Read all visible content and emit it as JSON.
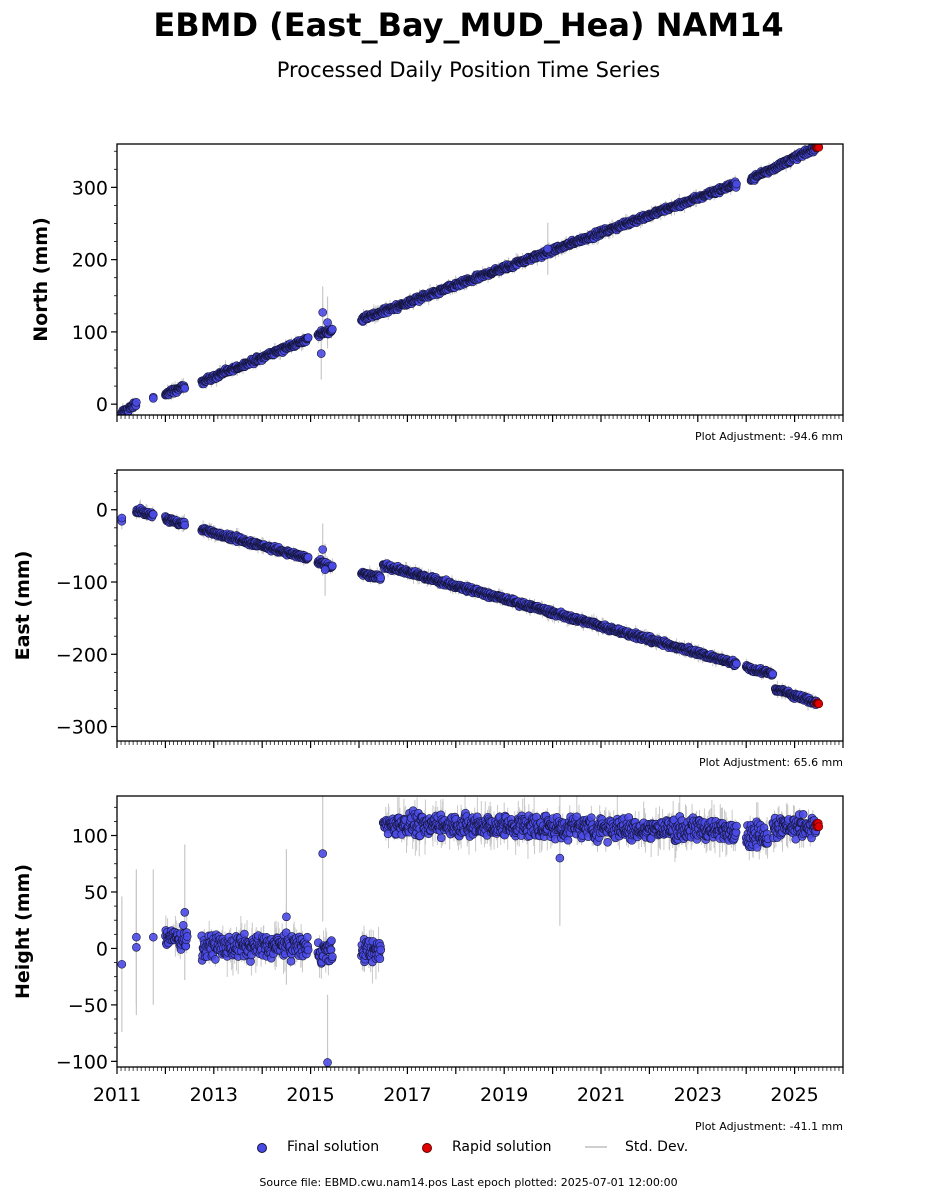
{
  "header": {
    "title": "EBMD (East_Bay_MUD_Hea) NAM14",
    "subtitle": "Processed Daily Position Time Series"
  },
  "legend": {
    "final": "Final solution",
    "rapid": "Rapid solution",
    "std": "Std. Dev."
  },
  "footer": "Source file: EBMD.cwu.nam14.pos  Last epoch plotted: 2025-07-01 12:00:00",
  "colors": {
    "final": "#4a4ae6",
    "rapid": "#e00000",
    "edge": "#141438",
    "std": "#c8c8c8"
  },
  "chart_data": [
    {
      "type": "scatter",
      "ylabel": "North (mm)",
      "adjustment": "Plot Adjustment: -94.6 mm",
      "xlim": [
        2011,
        2026
      ],
      "ylim": [
        -15,
        360
      ],
      "yticks": [
        0,
        100,
        200,
        300
      ],
      "xticks": [
        2011,
        2013,
        2015,
        2017,
        2019,
        2021,
        2023,
        2025
      ],
      "show_xtick_labels": false,
      "series": [
        {
          "name": "Final solution",
          "segments": [
            {
              "x": [
                2011.1,
                2011.4
              ],
              "y": [
                -12,
                0
              ]
            },
            {
              "x": [
                2011.75,
                2011.75
              ],
              "y": [
                8,
                8
              ]
            },
            {
              "x": [
                2012.0,
                2012.4
              ],
              "y": [
                14,
                24
              ]
            },
            {
              "x": [
                2012.75,
                2014.95
              ],
              "y": [
                31,
                90
              ]
            },
            {
              "x": [
                2015.15,
                2015.45
              ],
              "y": [
                96,
                103
              ]
            },
            {
              "x": [
                2016.05,
                2023.8
              ],
              "y": [
                117,
                305
              ]
            },
            {
              "x": [
                2024.1,
                2025.45
              ],
              "y": [
                312,
                355
              ]
            }
          ],
          "outliers": [
            [
              2015.25,
              127
            ],
            [
              2015.22,
              70
            ],
            [
              2015.35,
              113
            ],
            [
              2019.9,
              215
            ]
          ]
        },
        {
          "name": "Rapid solution",
          "segments": [
            {
              "x": [
                2025.45,
                2025.5
              ],
              "y": [
                355,
                357
              ]
            }
          ],
          "outliers": []
        }
      ]
    },
    {
      "type": "scatter",
      "ylabel": "East (mm)",
      "adjustment": "Plot Adjustment: 65.6 mm",
      "xlim": [
        2011,
        2026
      ],
      "ylim": [
        -320,
        55
      ],
      "yticks": [
        0,
        -100,
        -200,
        -300
      ],
      "xticks": [
        2011,
        2013,
        2015,
        2017,
        2019,
        2021,
        2023,
        2025
      ],
      "show_xtick_labels": false,
      "series": [
        {
          "name": "Final solution",
          "segments": [
            {
              "x": [
                2011.1,
                2011.1
              ],
              "y": [
                -12,
                -12
              ]
            },
            {
              "x": [
                2011.4,
                2011.75
              ],
              "y": [
                0,
                -8
              ]
            },
            {
              "x": [
                2012.0,
                2012.4
              ],
              "y": [
                -13,
                -20
              ]
            },
            {
              "x": [
                2012.75,
                2014.95
              ],
              "y": [
                -27,
                -67
              ]
            },
            {
              "x": [
                2015.15,
                2015.45
              ],
              "y": [
                -72,
                -80
              ]
            },
            {
              "x": [
                2016.05,
                2016.45
              ],
              "y": [
                -88,
                -95
              ]
            },
            {
              "x": [
                2016.5,
                2023.8
              ],
              "y": [
                -77,
                -213
              ]
            },
            {
              "x": [
                2024.0,
                2024.55
              ],
              "y": [
                -218,
                -227
              ]
            },
            {
              "x": [
                2024.6,
                2025.45
              ],
              "y": [
                -248,
                -267
              ]
            }
          ],
          "outliers": [
            [
              2015.25,
              -55
            ],
            [
              2015.3,
              -83
            ]
          ]
        },
        {
          "name": "Rapid solution",
          "segments": [
            {
              "x": [
                2025.45,
                2025.5
              ],
              "y": [
                -267,
                -268
              ]
            }
          ],
          "outliers": []
        }
      ]
    },
    {
      "type": "scatter",
      "ylabel": "Height (mm)",
      "adjustment": "Plot Adjustment: -41.1 mm",
      "xlim": [
        2011,
        2026
      ],
      "ylim": [
        -105,
        135
      ],
      "yticks": [
        -100,
        -50,
        0,
        50,
        100
      ],
      "xticks": [
        2011,
        2013,
        2015,
        2017,
        2019,
        2021,
        2023,
        2025
      ],
      "show_xtick_labels": true,
      "series": [
        {
          "name": "Final solution",
          "segments": [
            {
              "x": [
                2012.0,
                2012.45
              ],
              "y": [
                10,
                10
              ]
            },
            {
              "x": [
                2012.75,
                2014.95
              ],
              "y": [
                2,
                2
              ]
            },
            {
              "x": [
                2015.15,
                2015.45
              ],
              "y": [
                -2,
                -2
              ]
            },
            {
              "x": [
                2016.05,
                2016.45
              ],
              "y": [
                -2,
                -2
              ]
            },
            {
              "x": [
                2016.5,
                2023.8
              ],
              "y": [
                110,
                105
              ]
            },
            {
              "x": [
                2024.0,
                2024.45
              ],
              "y": [
                100,
                100
              ]
            },
            {
              "x": [
                2024.55,
                2025.45
              ],
              "y": [
                108,
                108
              ]
            }
          ],
          "outliers": [
            [
              2011.1,
              -14
            ],
            [
              2011.4,
              10
            ],
            [
              2011.4,
              1
            ],
            [
              2011.75,
              10
            ],
            [
              2012.4,
              32
            ],
            [
              2015.25,
              84
            ],
            [
              2015.35,
              -101
            ],
            [
              2020.15,
              80
            ],
            [
              2014.5,
              28
            ]
          ]
        },
        {
          "name": "Rapid solution",
          "segments": [
            {
              "x": [
                2025.45,
                2025.5
              ],
              "y": [
                108,
                108
              ]
            }
          ],
          "outliers": []
        }
      ]
    }
  ]
}
